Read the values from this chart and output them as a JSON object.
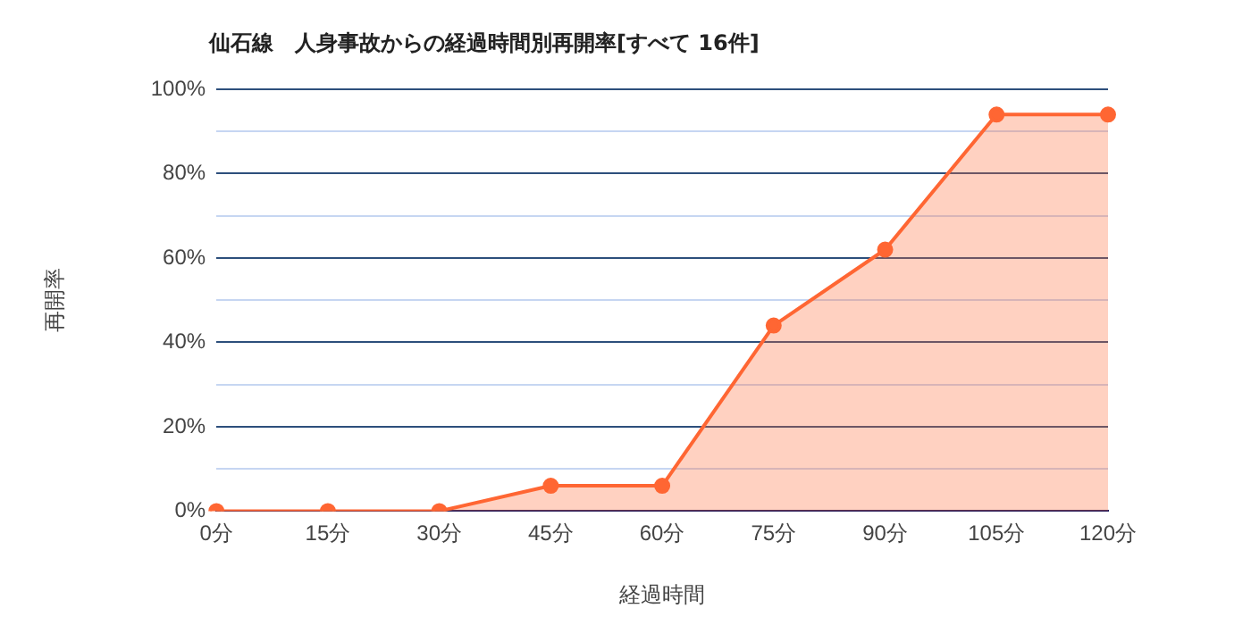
{
  "chart_data": {
    "type": "area",
    "title": "仙石線　人身事故からの経過時間別再開率[すべて 16件]",
    "xlabel": "経過時間",
    "ylabel": "再開率",
    "categories": [
      "0分",
      "15分",
      "30分",
      "45分",
      "60分",
      "75分",
      "90分",
      "105分",
      "120分"
    ],
    "series": [
      {
        "color": "#ff6633",
        "values": [
          0,
          0,
          0,
          6,
          6,
          44,
          62,
          94,
          94
        ]
      }
    ],
    "ylim": [
      0,
      100
    ],
    "yticks": [
      {
        "value": 0,
        "label": "0%"
      },
      {
        "value": 10,
        "label": null
      },
      {
        "value": 20,
        "label": "20%"
      },
      {
        "value": 30,
        "label": null
      },
      {
        "value": 40,
        "label": "40%"
      },
      {
        "value": 50,
        "label": null
      },
      {
        "value": 60,
        "label": "60%"
      },
      {
        "value": 70,
        "label": null
      },
      {
        "value": 80,
        "label": "80%"
      },
      {
        "value": 90,
        "label": null
      },
      {
        "value": 100,
        "label": "100%"
      }
    ],
    "grid": "y",
    "legend": false,
    "marker": "circle"
  }
}
